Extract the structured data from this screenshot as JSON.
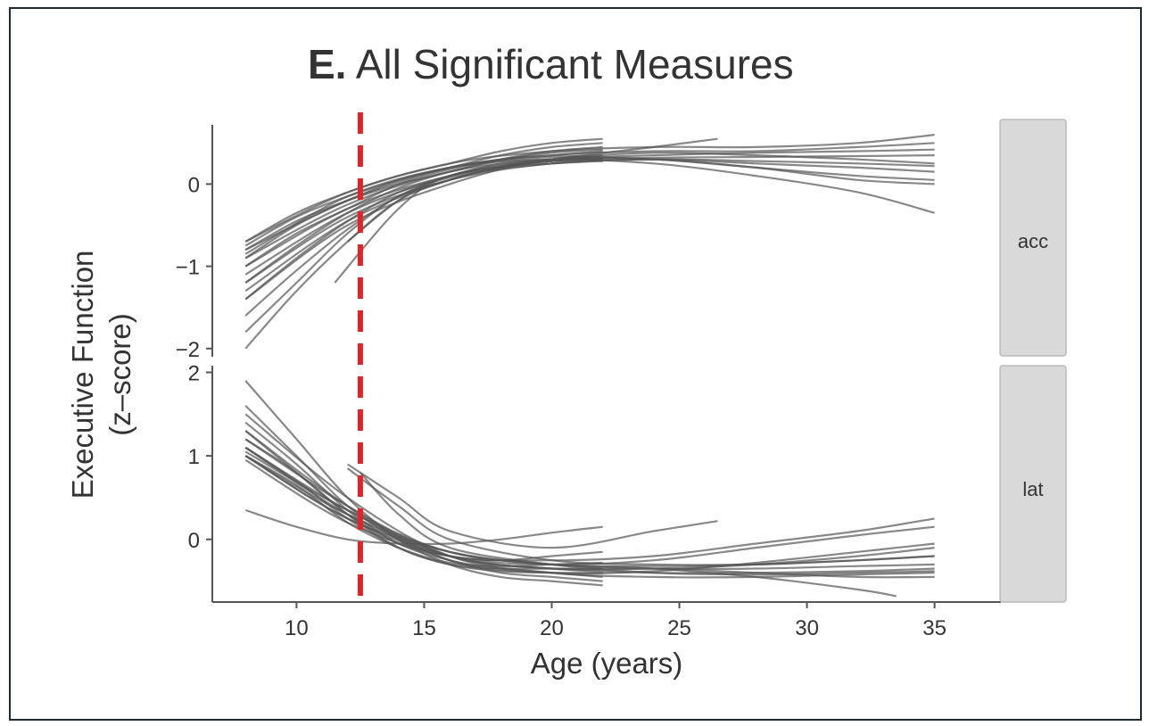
{
  "chart_data": {
    "type": "line",
    "title_bold": "E.",
    "title_rest": " All Significant Measures",
    "xlabel": "Age (years)",
    "ylabel_line1": "Executive Function",
    "ylabel_line2": "(z–score)",
    "xlim": [
      6.7,
      37.6
    ],
    "xticks": [
      10,
      15,
      20,
      25,
      30,
      35
    ],
    "reference_line": {
      "x": 12.5,
      "color": "#e0242a",
      "style": "dashed"
    },
    "line_color": "#555555",
    "facets": [
      {
        "label": "acc",
        "ylim": [
          -2.1,
          0.72
        ],
        "yticks": [
          0,
          -1,
          -2
        ],
        "ytick_labels": [
          "0",
          "−1",
          "−2"
        ],
        "series": [
          {
            "x": [
              8,
              10,
              12,
              14,
              16,
              18,
              20,
              22
            ],
            "y": [
              -0.7,
              -0.35,
              -0.1,
              0.1,
              0.25,
              0.4,
              0.5,
              0.55
            ]
          },
          {
            "x": [
              8,
              10,
              12,
              14,
              16,
              18,
              20,
              22
            ],
            "y": [
              -0.75,
              -0.4,
              -0.15,
              0.05,
              0.2,
              0.35,
              0.45,
              0.5
            ]
          },
          {
            "x": [
              8,
              10,
              12,
              14,
              16,
              18,
              20,
              22
            ],
            "y": [
              -0.8,
              -0.45,
              -0.2,
              0.0,
              0.15,
              0.3,
              0.4,
              0.45
            ]
          },
          {
            "x": [
              8,
              10,
              12,
              14,
              16,
              18,
              20,
              22
            ],
            "y": [
              -0.9,
              -0.5,
              -0.2,
              0.05,
              0.2,
              0.3,
              0.38,
              0.42
            ]
          },
          {
            "x": [
              8,
              10,
              12,
              14,
              16,
              18,
              20,
              22
            ],
            "y": [
              -1.0,
              -0.6,
              -0.3,
              0.0,
              0.18,
              0.3,
              0.35,
              0.4
            ]
          },
          {
            "x": [
              8,
              10,
              12,
              14,
              16,
              18,
              20,
              22
            ],
            "y": [
              -1.2,
              -0.75,
              -0.35,
              -0.05,
              0.15,
              0.28,
              0.33,
              0.35
            ]
          },
          {
            "x": [
              8,
              10,
              12,
              14,
              16,
              18,
              20,
              22
            ],
            "y": [
              -1.4,
              -0.9,
              -0.45,
              -0.1,
              0.1,
              0.25,
              0.3,
              0.32
            ]
          },
          {
            "x": [
              8,
              10,
              12,
              14,
              16,
              18,
              20,
              22
            ],
            "y": [
              -1.6,
              -1.05,
              -0.55,
              -0.15,
              0.1,
              0.22,
              0.28,
              0.3
            ]
          },
          {
            "x": [
              8,
              10,
              12,
              14,
              16,
              18,
              20,
              22
            ],
            "y": [
              -1.8,
              -1.2,
              -0.6,
              -0.15,
              0.05,
              0.2,
              0.28,
              0.3
            ]
          },
          {
            "x": [
              8,
              10,
              12,
              14,
              16,
              18,
              20,
              22
            ],
            "y": [
              -2.0,
              -1.3,
              -0.7,
              -0.2,
              0.05,
              0.2,
              0.25,
              0.28
            ]
          },
          {
            "x": [
              8,
              12,
              16,
              20,
              24,
              28,
              32,
              35
            ],
            "y": [
              -0.7,
              -0.1,
              0.25,
              0.4,
              0.45,
              0.45,
              0.5,
              0.6
            ]
          },
          {
            "x": [
              8,
              12,
              16,
              20,
              24,
              28,
              32,
              35
            ],
            "y": [
              -0.8,
              -0.2,
              0.2,
              0.35,
              0.4,
              0.4,
              0.45,
              0.5
            ]
          },
          {
            "x": [
              8,
              12,
              16,
              20,
              24,
              28,
              32,
              35
            ],
            "y": [
              -0.9,
              -0.25,
              0.15,
              0.3,
              0.35,
              0.38,
              0.4,
              0.42
            ]
          },
          {
            "x": [
              8,
              12,
              16,
              20,
              24,
              28,
              32,
              35
            ],
            "y": [
              -1.0,
              -0.3,
              0.1,
              0.28,
              0.32,
              0.33,
              0.34,
              0.35
            ]
          },
          {
            "x": [
              8,
              12,
              16,
              20,
              24,
              28,
              32,
              35
            ],
            "y": [
              -1.1,
              -0.35,
              0.08,
              0.25,
              0.3,
              0.28,
              0.25,
              0.22
            ]
          },
          {
            "x": [
              8,
              12,
              16,
              20,
              24,
              28,
              32,
              35
            ],
            "y": [
              -1.2,
              -0.4,
              0.05,
              0.25,
              0.3,
              0.25,
              0.2,
              0.15
            ]
          },
          {
            "x": [
              8,
              12,
              16,
              20,
              24,
              28,
              32,
              35
            ],
            "y": [
              -1.3,
              -0.45,
              0.05,
              0.3,
              0.3,
              0.2,
              0.1,
              0.05
            ]
          },
          {
            "x": [
              8,
              12,
              16,
              20,
              24,
              28,
              32,
              35
            ],
            "y": [
              -1.4,
              -0.5,
              0.0,
              0.3,
              0.3,
              0.2,
              0.05,
              0.0
            ]
          },
          {
            "x": [
              8,
              12,
              16,
              20,
              24,
              28,
              32,
              35
            ],
            "y": [
              -0.85,
              -0.15,
              0.2,
              0.3,
              0.25,
              0.1,
              -0.1,
              -0.35
            ]
          },
          {
            "x": [
              11.5,
              14,
              16,
              20,
              24,
              28,
              32,
              35
            ],
            "y": [
              -1.2,
              -0.3,
              0.1,
              0.3,
              0.38,
              0.35,
              0.3,
              0.25
            ]
          },
          {
            "x": [
              12,
              14,
              16,
              20,
              24,
              26.5
            ],
            "y": [
              -0.7,
              -0.2,
              0.1,
              0.3,
              0.45,
              0.55
            ]
          }
        ]
      },
      {
        "label": "lat",
        "ylim": [
          -0.75,
          2.08
        ],
        "yticks": [
          2,
          1,
          0
        ],
        "ytick_labels": [
          "2",
          "1",
          "0"
        ],
        "series": [
          {
            "x": [
              8,
              10,
              12,
              14,
              16,
              18,
              20,
              22
            ],
            "y": [
              1.9,
              1.2,
              0.5,
              0.0,
              -0.3,
              -0.45,
              -0.5,
              -0.55
            ]
          },
          {
            "x": [
              8,
              10,
              12,
              14,
              16,
              18,
              20,
              22
            ],
            "y": [
              1.6,
              1.0,
              0.4,
              0.0,
              -0.25,
              -0.4,
              -0.45,
              -0.5
            ]
          },
          {
            "x": [
              8,
              10,
              12,
              14,
              16,
              18,
              20,
              22
            ],
            "y": [
              1.4,
              0.9,
              0.35,
              -0.05,
              -0.25,
              -0.35,
              -0.4,
              -0.45
            ]
          },
          {
            "x": [
              8,
              10,
              12,
              14,
              16,
              18,
              20,
              22
            ],
            "y": [
              1.2,
              0.8,
              0.3,
              -0.1,
              -0.3,
              -0.38,
              -0.4,
              -0.4
            ]
          },
          {
            "x": [
              8,
              10,
              12,
              14,
              16,
              18,
              20,
              22
            ],
            "y": [
              1.1,
              0.7,
              0.25,
              -0.1,
              -0.3,
              -0.35,
              -0.35,
              -0.35
            ]
          },
          {
            "x": [
              8,
              10,
              12,
              14,
              16,
              18,
              20,
              22
            ],
            "y": [
              1.0,
              0.65,
              0.2,
              -0.1,
              -0.28,
              -0.32,
              -0.3,
              -0.28
            ]
          },
          {
            "x": [
              8,
              10,
              12,
              14,
              16,
              18,
              20,
              22
            ],
            "y": [
              1.3,
              0.8,
              0.3,
              -0.05,
              -0.2,
              -0.25,
              -0.2,
              -0.15
            ]
          },
          {
            "x": [
              8,
              12,
              16,
              20,
              24,
              28,
              32,
              35
            ],
            "y": [
              1.5,
              0.5,
              -0.2,
              -0.4,
              -0.45,
              -0.45,
              -0.42,
              -0.4
            ]
          },
          {
            "x": [
              8,
              12,
              16,
              20,
              24,
              28,
              32,
              35
            ],
            "y": [
              1.2,
              0.4,
              -0.2,
              -0.35,
              -0.4,
              -0.4,
              -0.38,
              -0.35
            ]
          },
          {
            "x": [
              8,
              12,
              16,
              20,
              24,
              28,
              32,
              35
            ],
            "y": [
              1.05,
              0.35,
              -0.15,
              -0.3,
              -0.35,
              -0.35,
              -0.32,
              -0.3
            ]
          },
          {
            "x": [
              8,
              12,
              16,
              20,
              24,
              28,
              32,
              35
            ],
            "y": [
              1.0,
              0.3,
              -0.15,
              -0.3,
              -0.32,
              -0.3,
              -0.25,
              -0.2
            ]
          },
          {
            "x": [
              8,
              12,
              16,
              20,
              24,
              28,
              32,
              35
            ],
            "y": [
              1.1,
              0.35,
              -0.2,
              -0.35,
              -0.35,
              -0.3,
              -0.2,
              -0.1
            ]
          },
          {
            "x": [
              8,
              12,
              16,
              20,
              24,
              28,
              32,
              35
            ],
            "y": [
              1.3,
              0.4,
              -0.25,
              -0.4,
              -0.38,
              -0.28,
              -0.15,
              -0.05
            ]
          },
          {
            "x": [
              8,
              12,
              16,
              20,
              24,
              28,
              32,
              35
            ],
            "y": [
              1.0,
              0.25,
              -0.2,
              -0.3,
              -0.25,
              -0.1,
              0.05,
              0.15
            ]
          },
          {
            "x": [
              8,
              12,
              16,
              20,
              24,
              28,
              32,
              35
            ],
            "y": [
              0.95,
              0.2,
              -0.2,
              -0.25,
              -0.2,
              -0.05,
              0.1,
              0.25
            ]
          },
          {
            "x": [
              8,
              12,
              16,
              20,
              24,
              28,
              32,
              35
            ],
            "y": [
              1.1,
              0.3,
              -0.2,
              -0.35,
              -0.35,
              -0.4,
              -0.45,
              -0.45
            ]
          },
          {
            "x": [
              8,
              12,
              16,
              20,
              24,
              28,
              32,
              33.5
            ],
            "y": [
              1.0,
              0.25,
              -0.15,
              -0.3,
              -0.35,
              -0.45,
              -0.6,
              -0.68
            ]
          },
          {
            "x": [
              8,
              10,
              12,
              14,
              16,
              18,
              20,
              22
            ],
            "y": [
              0.35,
              0.15,
              0.0,
              -0.05,
              -0.05,
              0.0,
              0.08,
              0.15
            ]
          },
          {
            "x": [
              12,
              14,
              16,
              20,
              24,
              26.5
            ],
            "y": [
              0.9,
              0.5,
              0.1,
              -0.1,
              0.1,
              0.22
            ]
          },
          {
            "x": [
              12,
              14,
              16,
              20,
              24,
              28,
              32,
              35
            ],
            "y": [
              0.85,
              0.4,
              0.0,
              -0.25,
              -0.3,
              -0.3,
              -0.25,
              -0.2
            ]
          },
          {
            "x": [
              12.5,
              14,
              16,
              20,
              24,
              28,
              32,
              35
            ],
            "y": [
              0.8,
              0.3,
              -0.1,
              -0.3,
              -0.4,
              -0.42,
              -0.4,
              -0.38
            ]
          }
        ]
      }
    ]
  }
}
